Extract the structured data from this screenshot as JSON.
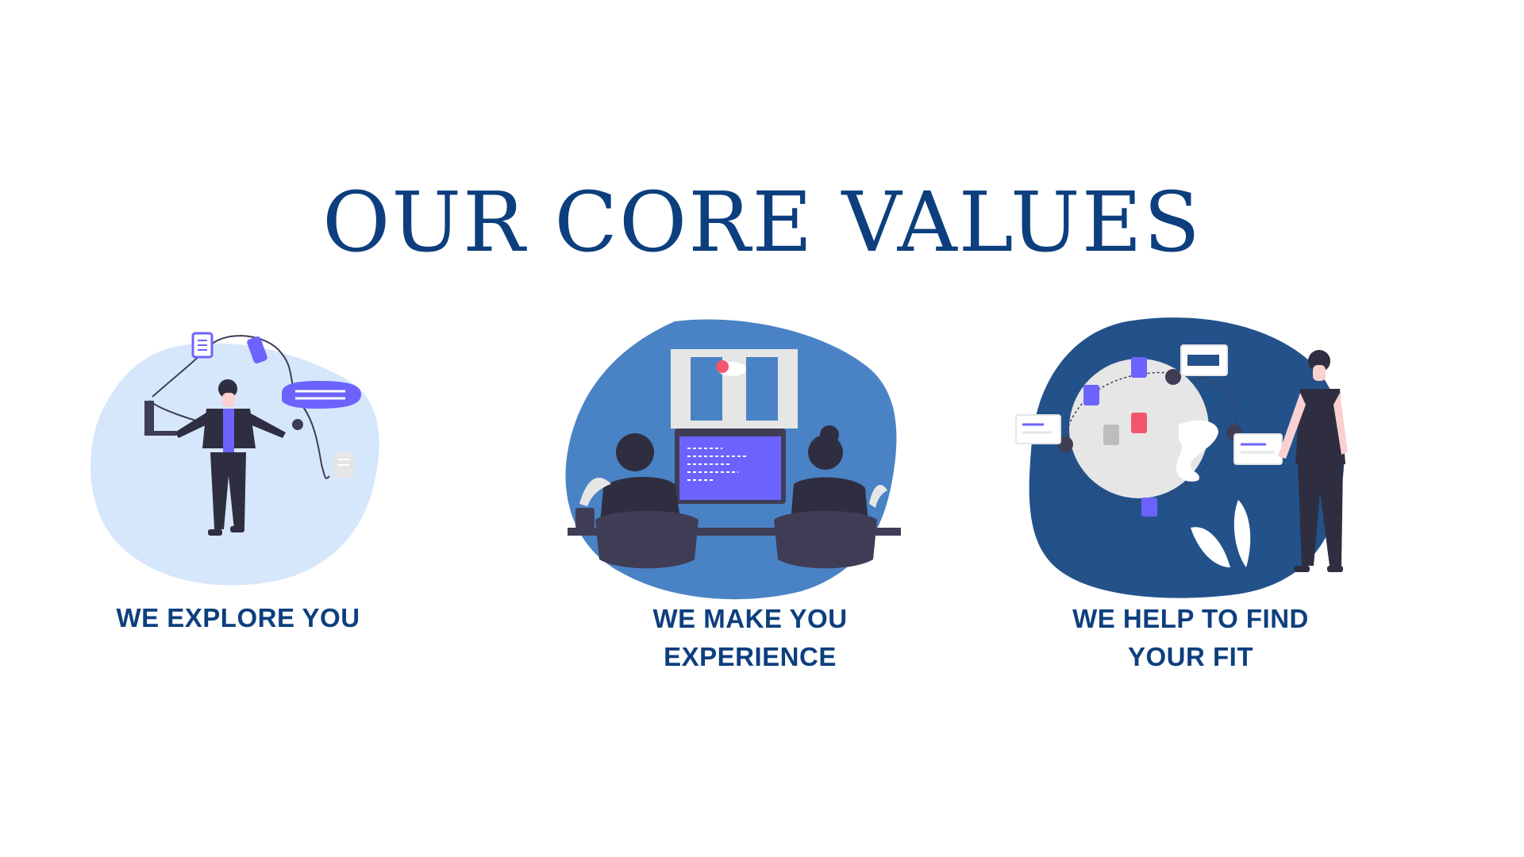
{
  "page": {
    "title": "OUR CORE VALUES"
  },
  "values": [
    {
      "illustration": "person-juggling-devices-illustration",
      "caption_line1": "WE EXPLORE YOU",
      "caption_line2": ""
    },
    {
      "illustration": "two-people-coding-at-monitor-illustration",
      "caption_line1": "WE MAKE YOU",
      "caption_line2": "EXPERIENCE"
    },
    {
      "illustration": "person-with-connected-documents-illustration",
      "caption_line1": "WE HELP TO FIND",
      "caption_line2": "YOUR FIT"
    }
  ],
  "colors": {
    "heading": "#0d3f7e",
    "blob_light": "#d6e7fb",
    "blob_mid": "#4a83c5",
    "blob_dark": "#23528a",
    "accent_purple": "#6c63ff",
    "figure_dark": "#2f2e41",
    "accent_pink": "#f2566f"
  }
}
